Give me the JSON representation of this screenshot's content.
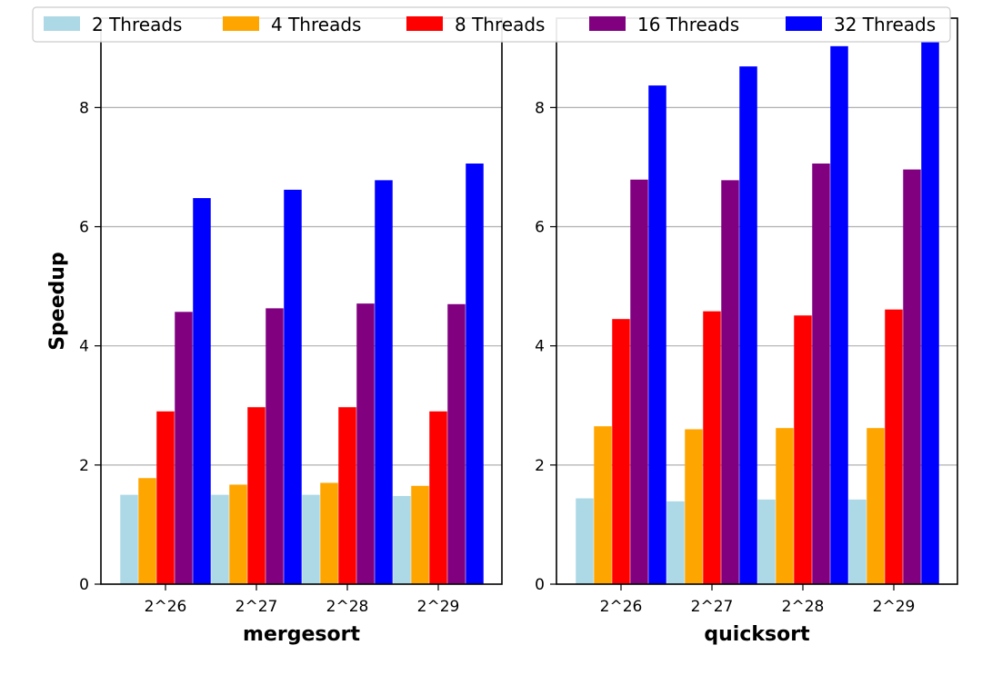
{
  "chart_data": {
    "type": "bar",
    "ylabel": "Speedup",
    "ylim": [
      0,
      9.5
    ],
    "yticks": [
      "0",
      "2",
      "4",
      "6",
      "8"
    ],
    "grid": "horizontal",
    "legend_position": "top",
    "series_colors": [
      "#add8e6",
      "#ffa500",
      "#ff0000",
      "#800080",
      "#0000ff"
    ],
    "legend": [
      "2 Threads",
      "4 Threads",
      "8 Threads",
      "16 Threads",
      "32 Threads"
    ],
    "panels": [
      {
        "xlabel": "mergesort",
        "categories": [
          "2^26",
          "2^27",
          "2^28",
          "2^29"
        ],
        "series": [
          {
            "name": "2 Threads",
            "values": [
              1.5,
              1.5,
              1.5,
              1.48
            ]
          },
          {
            "name": "4 Threads",
            "values": [
              1.78,
              1.67,
              1.7,
              1.65
            ]
          },
          {
            "name": "8 Threads",
            "values": [
              2.9,
              2.97,
              2.97,
              2.9
            ]
          },
          {
            "name": "16 Threads",
            "values": [
              4.57,
              4.63,
              4.71,
              4.7
            ]
          },
          {
            "name": "32 Threads",
            "values": [
              6.48,
              6.62,
              6.78,
              7.06
            ]
          }
        ]
      },
      {
        "xlabel": "quicksort",
        "categories": [
          "2^26",
          "2^27",
          "2^28",
          "2^29"
        ],
        "series": [
          {
            "name": "2 Threads",
            "values": [
              1.44,
              1.39,
              1.42,
              1.42
            ]
          },
          {
            "name": "4 Threads",
            "values": [
              2.65,
              2.6,
              2.62,
              2.62
            ]
          },
          {
            "name": "8 Threads",
            "values": [
              4.45,
              4.58,
              4.51,
              4.61
            ]
          },
          {
            "name": "16 Threads",
            "values": [
              6.79,
              6.78,
              7.06,
              6.96
            ]
          },
          {
            "name": "32 Threads",
            "values": [
              8.37,
              8.69,
              9.03,
              9.1
            ]
          }
        ]
      }
    ]
  }
}
